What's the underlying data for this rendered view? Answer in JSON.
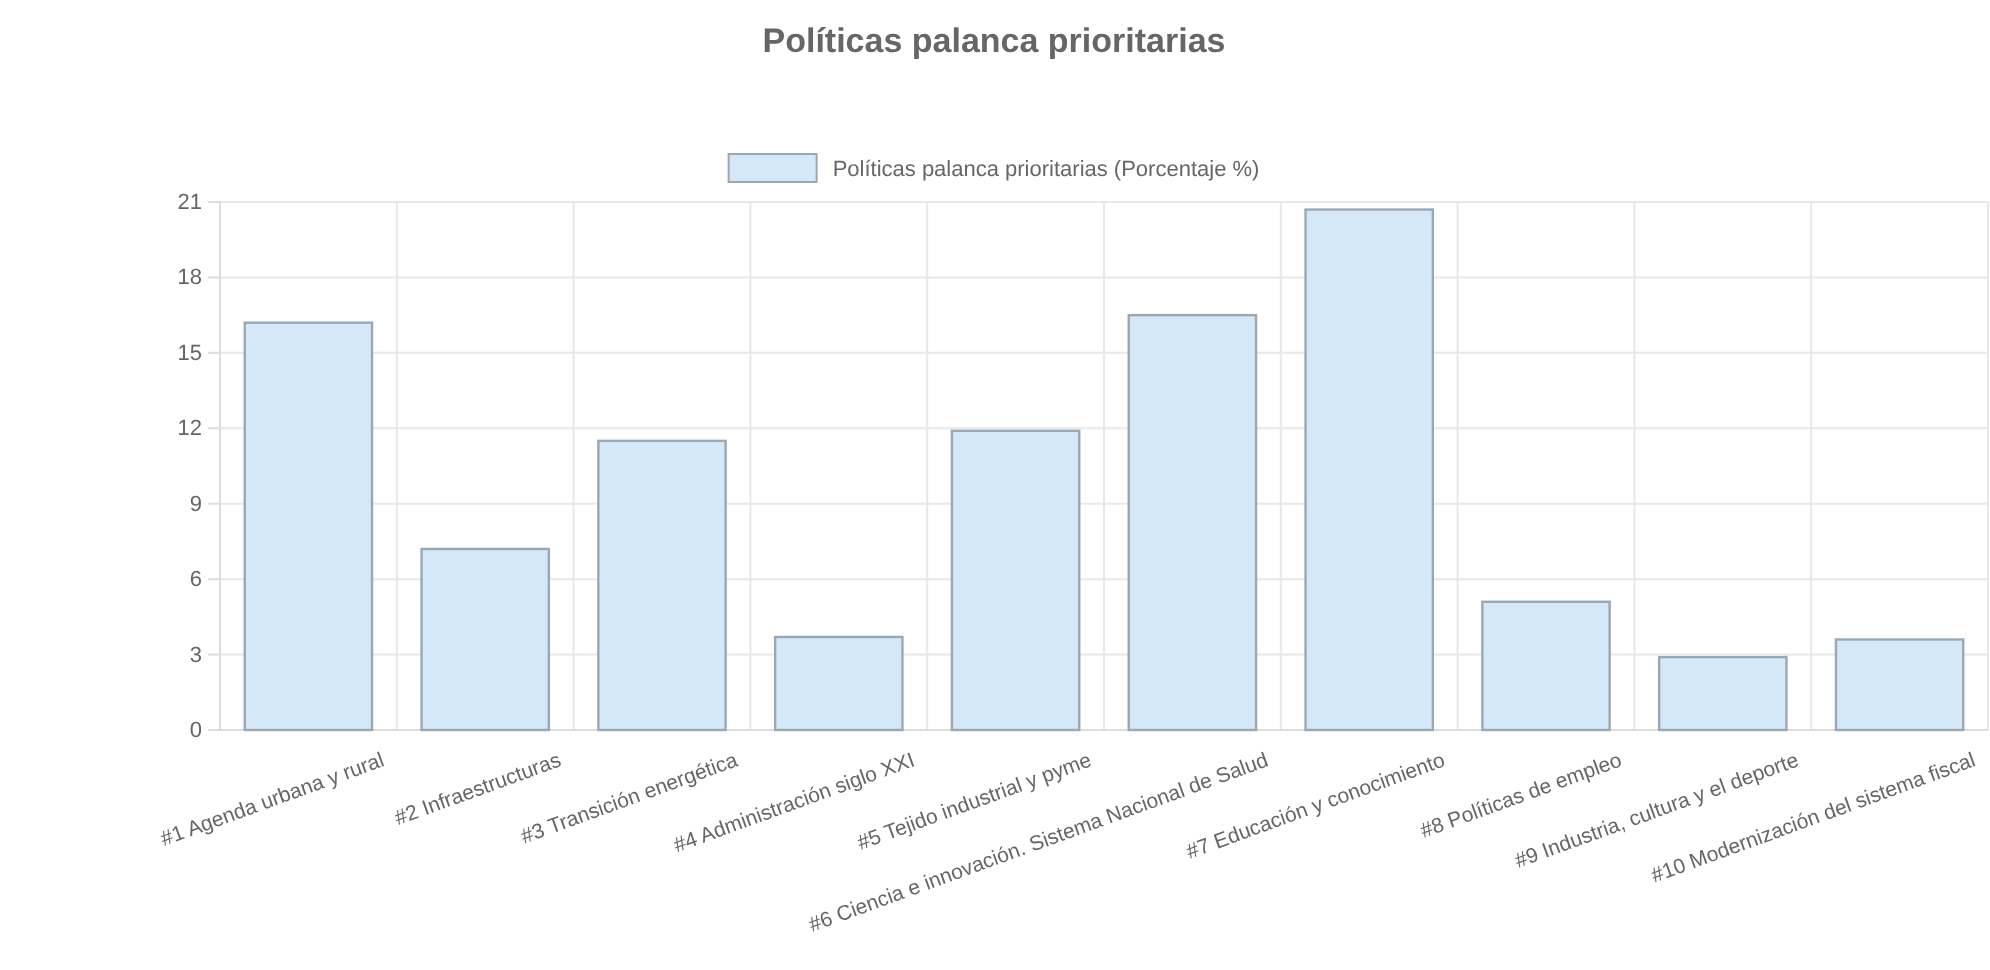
{
  "chart_data": {
    "type": "bar",
    "title": "Políticas palanca prioritarias",
    "categories": [
      "#1 Agenda urbana y rural",
      "#2 Infraestructuras",
      "#3 Transición energética",
      "#4 Administración siglo XXI",
      "#5 Tejido industrial y pyme",
      "#6 Ciencia e innovación. Sistema Nacional de Salud",
      "#7 Educación y conocimiento",
      "#8 Políticas de empleo",
      "#9 Industria, cultura y el deporte",
      "#10 Modernización del sistema fiscal"
    ],
    "series": [
      {
        "name": "Políticas palanca prioritarias (Porcentaje %)",
        "color": "#d4e8f7",
        "values": [
          16.2,
          7.2,
          11.5,
          3.7,
          11.9,
          16.5,
          20.7,
          5.1,
          2.9,
          3.6
        ]
      }
    ],
    "ylim": [
      0,
      21
    ],
    "yticks": [
      0,
      3,
      6,
      9,
      12,
      15,
      18,
      21
    ],
    "grid": true,
    "legend": "top"
  }
}
